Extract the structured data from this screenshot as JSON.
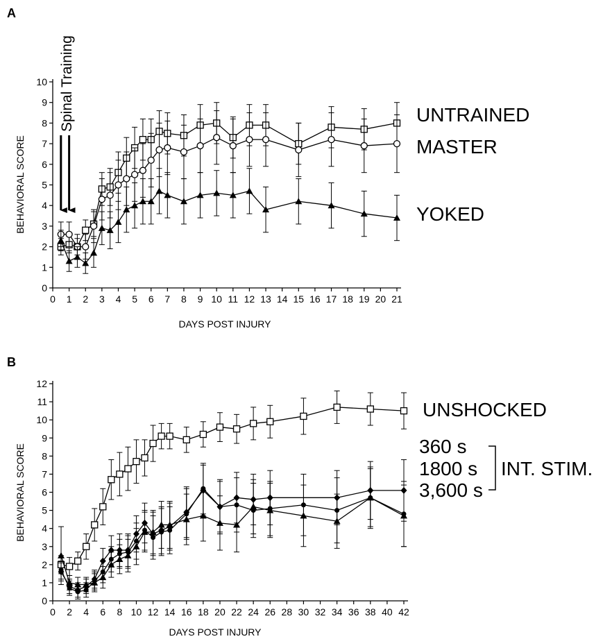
{
  "chart_data": [
    {
      "type": "line",
      "panel": "A",
      "xlabel": "DAYS POST INJURY",
      "ylabel": "BEHAVIORAL SCORE",
      "xlim": [
        0,
        21
      ],
      "ylim": [
        0,
        10
      ],
      "x_ticks": [
        0,
        1,
        2,
        3,
        4,
        5,
        6,
        7,
        8,
        9,
        10,
        11,
        12,
        13,
        14,
        15,
        16,
        17,
        18,
        19,
        20,
        21
      ],
      "y_ticks": [
        0,
        1,
        2,
        3,
        4,
        5,
        6,
        7,
        8,
        9,
        10
      ],
      "grid": false,
      "legend": "series labels at right end of lines",
      "annotation": {
        "text": "Spinal Training",
        "arrows_at_x": [
          0.5,
          1
        ]
      },
      "series": [
        {
          "name": "UNTRAINED",
          "marker": "open-square",
          "x": [
            0.5,
            1,
            1.5,
            2,
            2.5,
            3,
            3.5,
            4,
            4.5,
            5,
            5.5,
            6,
            6.5,
            7,
            8,
            9,
            10,
            11,
            12,
            13,
            15,
            17,
            19,
            21
          ],
          "y": [
            2.0,
            2.1,
            2.0,
            2.8,
            3.1,
            4.8,
            4.9,
            5.6,
            6.3,
            6.8,
            7.2,
            7.2,
            7.6,
            7.5,
            7.4,
            7.9,
            8.0,
            7.3,
            7.9,
            7.9,
            7.0,
            7.8,
            7.7,
            8.0
          ],
          "err": [
            0.4,
            0.4,
            0.4,
            0.5,
            0.6,
            0.8,
            0.9,
            1.0,
            1.0,
            1.0,
            1.0,
            1.0,
            1.0,
            1.0,
            1.0,
            1.0,
            1.0,
            1.0,
            1.0,
            1.0,
            1.0,
            1.0,
            1.0,
            1.0
          ]
        },
        {
          "name": "MASTER",
          "marker": "open-circle",
          "x": [
            0.5,
            1,
            1.5,
            2,
            2.5,
            3,
            3.5,
            4,
            4.5,
            5,
            5.5,
            6,
            6.5,
            7,
            8,
            9,
            10,
            11,
            12,
            13,
            15,
            17,
            19,
            21
          ],
          "y": [
            2.6,
            2.6,
            2.0,
            2.0,
            3.0,
            4.3,
            4.5,
            5.0,
            5.3,
            5.5,
            5.7,
            6.2,
            6.7,
            6.8,
            6.6,
            6.9,
            7.3,
            6.9,
            7.2,
            7.2,
            6.7,
            7.2,
            6.9,
            7.0
          ],
          "err": [
            0.6,
            0.6,
            0.6,
            0.6,
            0.8,
            1.0,
            1.1,
            1.2,
            1.3,
            1.3,
            1.3,
            1.3,
            1.3,
            1.3,
            1.3,
            1.3,
            1.3,
            1.3,
            1.3,
            1.3,
            1.3,
            1.3,
            1.3,
            1.4
          ]
        },
        {
          "name": "YOKED",
          "marker": "filled-triangle",
          "x": [
            0.5,
            1,
            1.5,
            2,
            2.5,
            3,
            3.5,
            4,
            4.5,
            5,
            5.5,
            6,
            6.5,
            7,
            8,
            9,
            10,
            11,
            12,
            13,
            15,
            17,
            19,
            21
          ],
          "y": [
            2.3,
            1.3,
            1.5,
            1.2,
            1.7,
            2.9,
            2.8,
            3.2,
            3.8,
            4.0,
            4.2,
            4.2,
            4.7,
            4.5,
            4.2,
            4.5,
            4.6,
            4.5,
            4.7,
            3.8,
            4.2,
            4.0,
            3.6,
            3.4
          ],
          "err": [
            0.5,
            0.5,
            0.5,
            0.5,
            0.7,
            0.8,
            0.9,
            1.0,
            1.1,
            1.1,
            1.1,
            1.1,
            1.1,
            1.1,
            1.1,
            1.1,
            1.1,
            1.1,
            1.1,
            1.1,
            1.1,
            1.1,
            1.1,
            1.1
          ]
        }
      ]
    },
    {
      "type": "line",
      "panel": "B",
      "xlabel": "DAYS POST INJURY",
      "ylabel": "BEHAVIORAL SCORE",
      "xlim": [
        0,
        42
      ],
      "ylim": [
        0,
        12
      ],
      "x_ticks": [
        0,
        2,
        4,
        6,
        8,
        10,
        12,
        14,
        16,
        18,
        20,
        22,
        24,
        26,
        28,
        30,
        32,
        34,
        36,
        38,
        40,
        42
      ],
      "y_ticks": [
        0,
        1,
        2,
        3,
        4,
        5,
        6,
        7,
        8,
        9,
        10,
        11,
        12
      ],
      "grid": false,
      "legend": "series labels at right end of lines",
      "group_label": "INT. STIM.",
      "series": [
        {
          "name": "UNSHOCKED",
          "marker": "open-square",
          "x": [
            1,
            2,
            3,
            4,
            5,
            6,
            7,
            8,
            9,
            10,
            11,
            12,
            13,
            14,
            16,
            18,
            20,
            22,
            24,
            26,
            30,
            34,
            38,
            42
          ],
          "y": [
            2.0,
            1.9,
            2.2,
            3.0,
            4.2,
            5.2,
            6.7,
            7.0,
            7.3,
            7.7,
            7.9,
            8.7,
            9.1,
            9.1,
            8.9,
            9.2,
            9.6,
            9.5,
            9.8,
            9.9,
            10.2,
            10.7,
            10.6,
            10.5
          ],
          "err": [
            0.5,
            0.5,
            0.5,
            0.7,
            0.9,
            1.0,
            1.1,
            1.2,
            1.2,
            1.2,
            1.0,
            1.0,
            0.7,
            0.7,
            0.7,
            0.7,
            0.8,
            0.8,
            0.9,
            0.9,
            1.0,
            0.9,
            0.9,
            1.0
          ]
        },
        {
          "name": "360 s",
          "marker": "filled-diamond",
          "x": [
            1,
            2,
            3,
            4,
            5,
            6,
            7,
            8,
            9,
            10,
            11,
            12,
            13,
            14,
            16,
            18,
            20,
            22,
            24,
            26,
            34,
            38,
            42
          ],
          "y": [
            1.6,
            0.8,
            0.6,
            0.8,
            1.2,
            2.2,
            2.8,
            2.8,
            2.8,
            3.7,
            4.3,
            3.7,
            3.9,
            4.1,
            4.9,
            6.1,
            5.2,
            5.7,
            5.6,
            5.7,
            5.7,
            6.1,
            6.1
          ],
          "err": [
            0.5,
            0.4,
            0.4,
            0.4,
            0.5,
            0.7,
            0.8,
            0.9,
            0.9,
            1.0,
            1.1,
            1.2,
            1.3,
            1.3,
            1.4,
            1.4,
            1.4,
            1.4,
            1.4,
            1.5,
            1.5,
            1.6,
            1.7
          ]
        },
        {
          "name": "1800 s",
          "marker": "filled-circle",
          "x": [
            1,
            2,
            3,
            4,
            5,
            6,
            7,
            8,
            9,
            10,
            11,
            12,
            13,
            14,
            16,
            18,
            20,
            22,
            24,
            26,
            30,
            34,
            38,
            42
          ],
          "y": [
            1.7,
            0.7,
            0.5,
            0.6,
            1.1,
            1.6,
            2.3,
            2.6,
            2.7,
            3.3,
            3.9,
            3.5,
            3.8,
            3.9,
            4.8,
            6.2,
            5.2,
            5.3,
            5.0,
            5.1,
            5.3,
            5.0,
            5.7,
            4.8
          ],
          "err": [
            0.5,
            0.4,
            0.4,
            0.4,
            0.5,
            0.6,
            0.7,
            0.8,
            0.9,
            1.0,
            1.1,
            1.2,
            1.3,
            1.3,
            1.4,
            1.4,
            1.5,
            1.5,
            1.5,
            1.5,
            1.7,
            1.8,
            1.7,
            1.8
          ]
        },
        {
          "name": "3,600 s",
          "marker": "filled-triangle",
          "x": [
            1,
            2,
            3,
            4,
            5,
            6,
            7,
            8,
            9,
            10,
            11,
            12,
            13,
            14,
            16,
            18,
            20,
            22,
            24,
            26,
            30,
            34,
            38,
            42
          ],
          "y": [
            2.5,
            1.0,
            0.9,
            0.9,
            1.0,
            1.3,
            2.0,
            2.3,
            2.5,
            3.0,
            3.8,
            3.8,
            4.2,
            4.2,
            4.5,
            4.7,
            4.3,
            4.2,
            5.2,
            5.0,
            4.7,
            4.4,
            5.7,
            4.7
          ],
          "err": [
            1.6,
            0.4,
            0.4,
            0.4,
            0.5,
            0.6,
            0.7,
            0.8,
            0.9,
            1.0,
            1.1,
            1.2,
            1.3,
            1.3,
            1.4,
            1.4,
            1.5,
            1.5,
            1.5,
            1.5,
            1.7,
            1.5,
            1.6,
            1.7
          ]
        }
      ]
    }
  ]
}
